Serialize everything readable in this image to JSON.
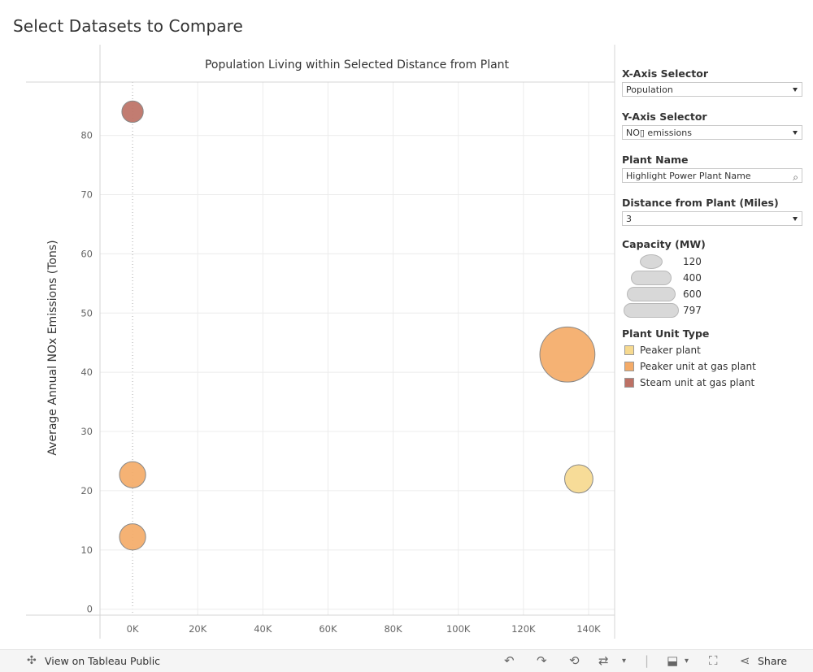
{
  "dashboard_title": "Select Datasets to Compare",
  "chart_data": {
    "type": "scatter",
    "title": "Population Living within Selected Distance from Plant",
    "xlabel": "",
    "ylabel": "Average Annual NOx Emissions (Tons)",
    "xlim": [
      -10000,
      148000
    ],
    "ylim": [
      -1,
      89
    ],
    "x_ticks": [
      0,
      20000,
      40000,
      60000,
      80000,
      100000,
      120000,
      140000
    ],
    "x_tick_labels": [
      "0K",
      "20K",
      "40K",
      "60K",
      "80K",
      "100K",
      "120K",
      "140K"
    ],
    "y_ticks": [
      0,
      10,
      20,
      30,
      40,
      50,
      60,
      70,
      80
    ],
    "y_tick_labels": [
      "0",
      "10",
      "20",
      "30",
      "40",
      "50",
      "60",
      "70",
      "80"
    ],
    "grid": true,
    "points": [
      {
        "x": 0,
        "y": 84,
        "capacity_mw": 120,
        "type": "Steam unit at gas plant"
      },
      {
        "x": 0,
        "y": 22.7,
        "capacity_mw": 180,
        "type": "Peaker unit at gas plant"
      },
      {
        "x": 0,
        "y": 12.2,
        "capacity_mw": 180,
        "type": "Peaker unit at gas plant"
      },
      {
        "x": 133500,
        "y": 43,
        "capacity_mw": 797,
        "type": "Peaker unit at gas plant"
      },
      {
        "x": 137000,
        "y": 22,
        "capacity_mw": 210,
        "type": "Peaker plant"
      }
    ]
  },
  "controls": {
    "x_axis": {
      "label": "X-Axis Selector",
      "value": "Population"
    },
    "y_axis": {
      "label": "Y-Axis Selector",
      "value": "NO▯ emissions"
    },
    "plant_name": {
      "label": "Plant Name",
      "placeholder": "Highlight Power Plant Name"
    },
    "distance": {
      "label": "Distance from Plant (Miles)",
      "value": "3"
    }
  },
  "size_legend": {
    "title": "Capacity (MW)",
    "entries": [
      {
        "label": "120",
        "value": 120
      },
      {
        "label": "400",
        "value": 400
      },
      {
        "label": "600",
        "value": 600
      },
      {
        "label": "797",
        "value": 797
      }
    ]
  },
  "color_legend": {
    "title": "Plant Unit Type",
    "entries": [
      {
        "label": "Peaker plant",
        "color": "#f6d98f"
      },
      {
        "label": "Peaker unit at gas plant",
        "color": "#f4ab68"
      },
      {
        "label": "Steam unit at gas plant",
        "color": "#bd7165"
      }
    ]
  },
  "footer": {
    "link": "View on Tableau Public",
    "share": "Share"
  }
}
